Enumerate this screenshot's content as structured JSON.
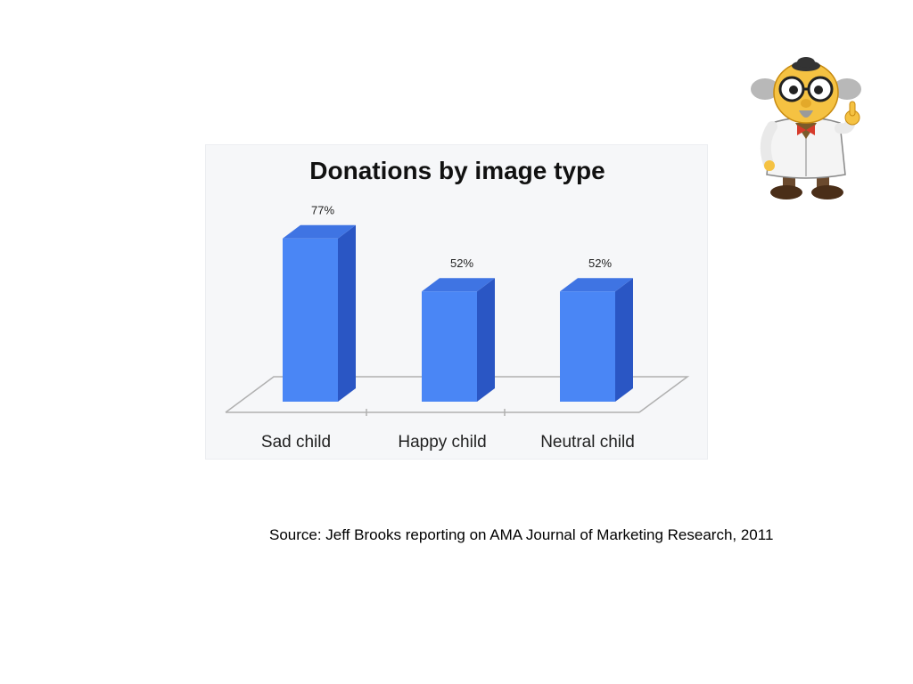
{
  "source_note": "Source: Jeff Brooks reporting on AMA Journal of Marketing Research, 2011",
  "mascot_icon": "mad-scientist-professor-icon",
  "colors": {
    "bar_front": "#4a86f5",
    "bar_side": "#2a56c4",
    "bar_top": "#3f74e3",
    "axis_line": "#b0b0b0",
    "panel_bg": "#f6f7f9"
  },
  "chart_data": {
    "type": "bar",
    "title": "Donations by image type",
    "categories": [
      "Sad child",
      "Happy child",
      "Neutral child"
    ],
    "values": [
      77,
      52,
      52
    ],
    "value_labels": [
      "77%",
      "52%",
      "52%"
    ],
    "ylim": [
      0,
      100
    ],
    "grid": false,
    "legend": "none",
    "style": "3d"
  }
}
